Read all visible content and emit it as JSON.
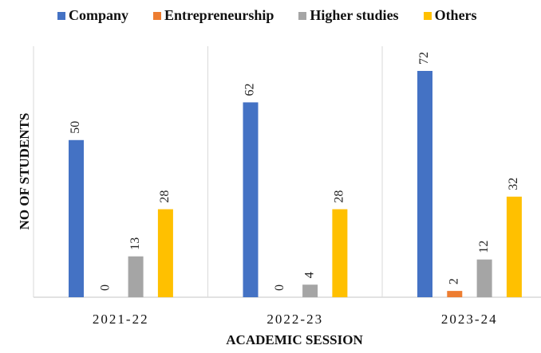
{
  "chart_data": {
    "type": "bar",
    "title": "",
    "xlabel": "ACADEMIC SESSION",
    "ylabel": "NO OF STUDENTS",
    "categories": [
      "2021-22",
      "2022-23",
      "2023-24"
    ],
    "series": [
      {
        "name": "Company",
        "color": "#4472C4",
        "values": [
          50,
          62,
          72
        ]
      },
      {
        "name": "Entrepreneurship",
        "color": "#ED7D31",
        "values": [
          0,
          0,
          2
        ]
      },
      {
        "name": "Higher studies",
        "color": "#A5A5A5",
        "values": [
          13,
          4,
          12
        ]
      },
      {
        "name": "Others",
        "color": "#FFC000",
        "values": [
          28,
          28,
          32
        ]
      }
    ],
    "ylim": [
      0,
      72
    ],
    "grid": false,
    "legend_position": "top"
  }
}
